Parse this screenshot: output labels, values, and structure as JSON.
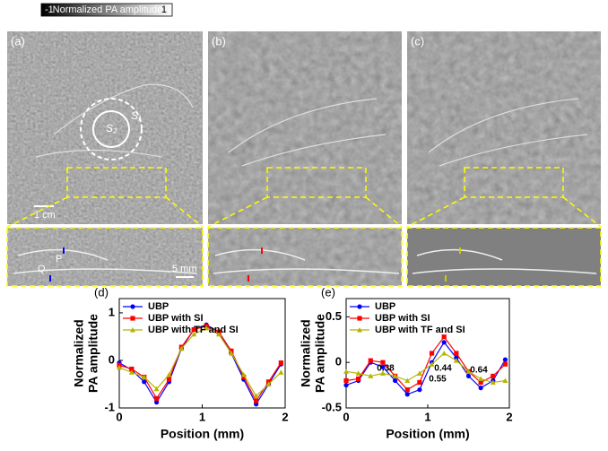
{
  "colorbar": {
    "min": "-1",
    "label": "Normalized PA amplitude",
    "max": "1"
  },
  "images": {
    "labels": [
      "(a)",
      "(b)",
      "(c)"
    ],
    "circle_labels": [
      "S₁",
      "S₂"
    ],
    "scale_bars": [
      "1 cm",
      "5 mm"
    ],
    "points": [
      "P",
      "Q"
    ]
  },
  "chart_data": [
    {
      "type": "line",
      "label": "(d)",
      "xlabel": "Position (mm)",
      "ylabel": [
        "Normalized",
        "PA amplitude"
      ],
      "x": [
        0,
        0.15,
        0.3,
        0.45,
        0.6,
        0.75,
        0.9,
        1.05,
        1.2,
        1.35,
        1.5,
        1.65,
        1.8,
        1.95
      ],
      "xlim": [
        0,
        2
      ],
      "xticks": [
        0,
        1,
        2
      ],
      "ylim": [
        -1,
        1.3
      ],
      "yticks": [
        -1,
        0,
        1
      ],
      "legend": "upper left",
      "series": [
        {
          "name": "UBP",
          "color": "#0000ff",
          "marker": "circle",
          "values": [
            -0.05,
            -0.2,
            -0.45,
            -0.88,
            -0.45,
            0.25,
            0.65,
            0.75,
            0.6,
            0.15,
            -0.4,
            -0.92,
            -0.5,
            -0.08
          ]
        },
        {
          "name": "UBP with SI",
          "color": "#ff0000",
          "marker": "square",
          "values": [
            -0.1,
            -0.18,
            -0.35,
            -0.8,
            -0.4,
            0.28,
            0.65,
            0.72,
            0.6,
            0.2,
            -0.35,
            -0.85,
            -0.45,
            -0.05
          ]
        },
        {
          "name": "UBP with TF and SI",
          "color": "#b5b500",
          "marker": "triangle",
          "values": [
            -0.15,
            -0.25,
            -0.35,
            -0.6,
            -0.3,
            0.25,
            0.55,
            0.68,
            0.55,
            0.15,
            -0.3,
            -0.75,
            -0.5,
            -0.25
          ]
        }
      ]
    },
    {
      "type": "line",
      "label": "(e)",
      "xlabel": "Position (mm)",
      "ylabel": [
        "Normalized",
        "PA amplitude"
      ],
      "x": [
        0,
        0.15,
        0.3,
        0.45,
        0.6,
        0.75,
        0.9,
        1.05,
        1.2,
        1.35,
        1.5,
        1.65,
        1.8,
        1.95
      ],
      "xlim": [
        0,
        2
      ],
      "xticks": [
        0,
        1,
        2
      ],
      "ylim": [
        -0.5,
        0.7
      ],
      "yticks": [
        -0.5,
        0,
        0.5
      ],
      "legend": "upper left",
      "annotations": [
        "0.38",
        "0.44",
        "0.55",
        "0.64"
      ],
      "series": [
        {
          "name": "UBP",
          "color": "#0000ff",
          "marker": "circle",
          "values": [
            -0.25,
            -0.2,
            0.0,
            -0.05,
            -0.2,
            -0.35,
            -0.3,
            0.0,
            0.22,
            0.05,
            -0.15,
            -0.28,
            -0.2,
            0.03
          ]
        },
        {
          "name": "UBP with SI",
          "color": "#ff0000",
          "marker": "square",
          "values": [
            -0.2,
            -0.18,
            0.02,
            0.0,
            -0.15,
            -0.3,
            -0.22,
            0.1,
            0.28,
            0.1,
            -0.1,
            -0.22,
            -0.15,
            -0.02
          ]
        },
        {
          "name": "UBP with TF and SI",
          "color": "#b5b500",
          "marker": "triangle",
          "values": [
            -0.1,
            -0.12,
            -0.15,
            -0.12,
            -0.15,
            -0.2,
            -0.12,
            -0.02,
            0.1,
            0.02,
            -0.1,
            -0.18,
            -0.22,
            -0.2
          ]
        }
      ]
    }
  ]
}
